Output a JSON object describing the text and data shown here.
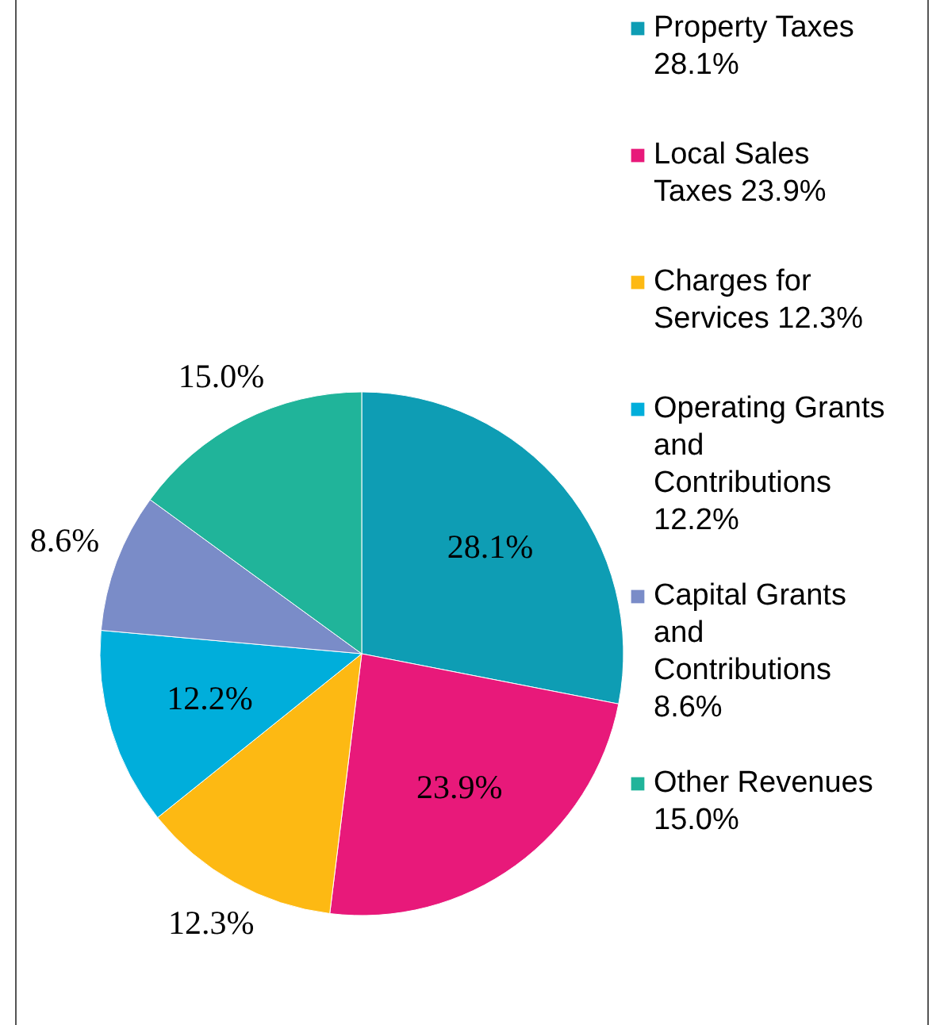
{
  "chart_data": {
    "type": "pie",
    "categories": [
      "Property Taxes 28.1%",
      "Local Sales Taxes 23.9%",
      "Charges for Services 12.3%",
      "Operating Grants and Contributions 12.2%",
      "Capital Grants and Contributions 8.6%",
      "Other Revenues 15.0%"
    ],
    "values": [
      28.1,
      23.9,
      12.3,
      12.2,
      8.6,
      15.0
    ],
    "value_labels": [
      "28.1%",
      "23.9%",
      "12.3%",
      "12.2%",
      "8.6%",
      "15.0%"
    ],
    "colors": [
      "#0e9db4",
      "#e8197a",
      "#fdb913",
      "#00aedb",
      "#7a8cc8",
      "#20b49a"
    ],
    "legend": "right"
  }
}
